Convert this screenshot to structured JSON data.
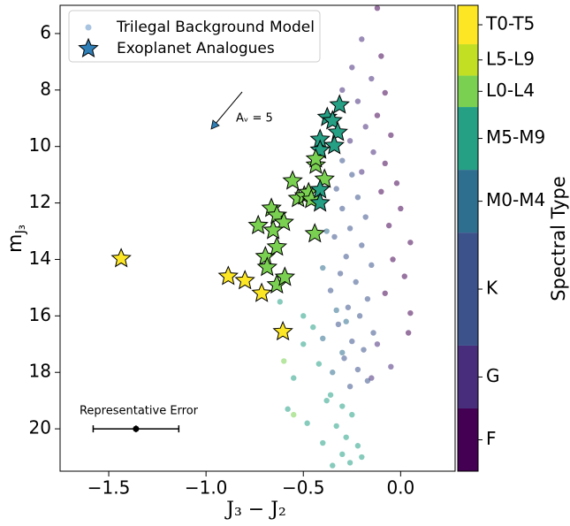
{
  "chart_data": {
    "type": "scatter",
    "xlabel": "J₃ − J₂",
    "ylabel": {
      "base": "m",
      "sub": "J₃"
    },
    "xlim": [
      -1.75,
      0.28
    ],
    "ylim": [
      21.5,
      5
    ],
    "xticks": [
      {
        "value": -1.5,
        "label": "−1.5"
      },
      {
        "value": -1.0,
        "label": "−1.0"
      },
      {
        "value": -0.5,
        "label": "−0.5"
      },
      {
        "value": 0.0,
        "label": "0.0"
      }
    ],
    "yticks": [
      6,
      8,
      10,
      12,
      14,
      16,
      18,
      20
    ],
    "legend": "upper left",
    "colorbar": {
      "label": "Spectral Type",
      "categories": [
        "F",
        "G",
        "K",
        "M0-M4",
        "M5-M9",
        "L0-L4",
        "L5-L9",
        "T0-T5"
      ],
      "colors": [
        "#440154",
        "#472d7b",
        "#3b528b",
        "#2e6e8e",
        "#25a085",
        "#7ad151",
        "#c2df23",
        "#fde725"
      ],
      "bounds": [
        0,
        1,
        2,
        3.8,
        4.8,
        5.8,
        6.3,
        6.8,
        7.42
      ]
    },
    "series": [
      {
        "name": "Trilegal Background Model",
        "color": "#a9c4e0",
        "marker": "circle",
        "x": [
          -0.12,
          -0.2,
          -0.1,
          -0.25,
          -0.15,
          -0.08,
          -0.22,
          -0.3,
          -0.12,
          -0.18,
          -0.05,
          -0.26,
          -0.14,
          -0.08,
          -0.2,
          -0.02,
          -0.1,
          0.0,
          -0.06,
          0.05,
          -0.04,
          0.02,
          -0.08,
          0.05,
          0.04,
          -0.12,
          -0.05,
          -0.15,
          -0.3,
          -0.25,
          -0.33,
          -0.22,
          -0.3,
          -0.18,
          -0.26,
          -0.34,
          -0.2,
          -0.28,
          -0.15,
          -0.31,
          -0.23,
          -0.36,
          -0.17,
          -0.27,
          -0.21,
          -0.32,
          -0.14,
          -0.25,
          -0.19,
          -0.29,
          -0.22,
          -0.17,
          -0.26,
          -0.38,
          -0.4,
          -0.33,
          -0.28,
          -0.4,
          -0.3,
          -0.35,
          -0.45,
          -0.5,
          -0.42,
          -0.55,
          -0.36,
          -0.3,
          -0.25,
          -0.33,
          -0.28,
          -0.22,
          -0.3,
          -0.26,
          -0.35,
          -0.2,
          -0.4,
          -0.48,
          -0.58,
          -0.38,
          -0.55,
          -0.62,
          -0.5,
          -0.6
        ],
        "values": [
          5.1,
          6.2,
          6.8,
          7.2,
          7.6,
          8.1,
          8.4,
          8.0,
          8.9,
          9.3,
          9.6,
          9.8,
          10.2,
          10.6,
          10.9,
          11.3,
          11.6,
          12.2,
          12.8,
          13.4,
          14.0,
          14.6,
          15.2,
          15.9,
          16.6,
          17.0,
          17.8,
          18.2,
          10.5,
          11.0,
          11.5,
          11.8,
          12.2,
          12.5,
          12.9,
          13.2,
          13.5,
          13.9,
          14.2,
          14.5,
          14.8,
          15.1,
          15.4,
          15.7,
          16.0,
          16.3,
          16.6,
          16.9,
          17.2,
          17.5,
          17.9,
          18.3,
          18.5,
          13.0,
          14.3,
          15.8,
          16.2,
          16.8,
          17.3,
          18.0,
          16.4,
          17.0,
          17.7,
          18.2,
          18.8,
          19.2,
          19.5,
          19.9,
          20.3,
          20.6,
          20.9,
          21.2,
          21.3,
          21.0,
          20.5,
          19.8,
          19.3,
          19.0,
          19.5,
          15.5,
          16.0,
          17.6
        ],
        "types": [
          0,
          1,
          0,
          1,
          1,
          0,
          1,
          1,
          0,
          1,
          0,
          1,
          1,
          0,
          1,
          0,
          0,
          0,
          0,
          0,
          0,
          0,
          0,
          0,
          0,
          1,
          1,
          1,
          2,
          2,
          2,
          2,
          2,
          2,
          2,
          2,
          2,
          2,
          2,
          2,
          2,
          2,
          2,
          2,
          2,
          2,
          2,
          2,
          2,
          2,
          2,
          2,
          2,
          3,
          3,
          3,
          3,
          3,
          3,
          3,
          4,
          4,
          4,
          4,
          4,
          4,
          4,
          4,
          4,
          4,
          4,
          4,
          4,
          4,
          4,
          4,
          4,
          4,
          5,
          4,
          4,
          5
        ]
      },
      {
        "name": "Exoplanet Analogues",
        "color": "#2e7fb8",
        "marker": "star",
        "x": [
          -1.436,
          -0.886,
          -0.8,
          -0.714,
          -0.605,
          -0.636,
          -0.595,
          -0.695,
          -0.686,
          -0.636,
          -0.732,
          -0.664,
          -0.636,
          -0.6,
          -0.655,
          -0.555,
          -0.527,
          -0.495,
          -0.473,
          -0.459,
          -0.441,
          -0.436,
          -0.391,
          -0.414,
          -0.414,
          -0.414,
          -0.414,
          -0.436,
          -0.377,
          -0.35,
          -0.323,
          -0.341,
          -0.314
        ],
        "values": [
          13.97,
          14.6,
          14.75,
          15.2,
          16.56,
          14.9,
          14.63,
          13.9,
          14.28,
          13.56,
          12.8,
          12.19,
          12.44,
          12.69,
          12.97,
          11.22,
          11.84,
          11.75,
          11.63,
          11.88,
          13.09,
          10.66,
          11.16,
          11.53,
          12.0,
          9.75,
          10.13,
          10.44,
          8.97,
          9.09,
          9.5,
          9.97,
          8.53
        ],
        "types": [
          7,
          7,
          7,
          7,
          7,
          5,
          5,
          5,
          5,
          5,
          5,
          5,
          5,
          5,
          5,
          5,
          5,
          5,
          5,
          5,
          5,
          5,
          5,
          4,
          4,
          4,
          4,
          5,
          4,
          4,
          4,
          4,
          4
        ]
      }
    ],
    "errorbar": {
      "label": "Representative Error",
      "x": -1.36,
      "y": 20,
      "xerr": 0.22,
      "yerr": 0.12
    },
    "annotation": "Aᵥ = 5"
  }
}
